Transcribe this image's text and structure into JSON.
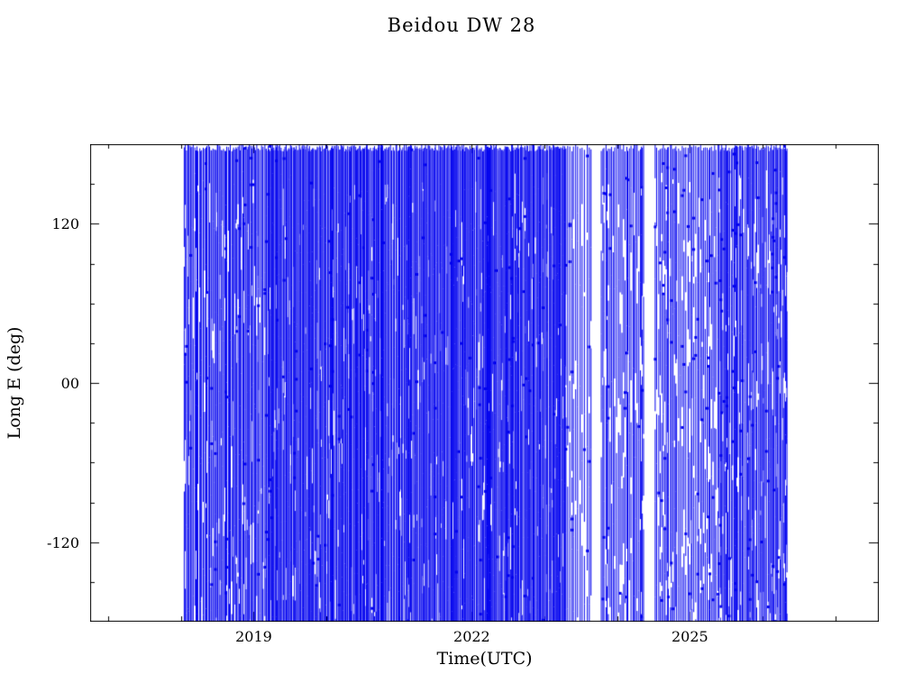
{
  "page": {
    "background": "#ffffff"
  },
  "chart_data": {
    "type": "line",
    "title": "Beidou DW 28",
    "xlabel": "Time(UTC)",
    "ylabel": "Long E (deg)",
    "xlim": [
      2016.75,
      2027.6
    ],
    "ylim": [
      -180,
      180
    ],
    "x_major_ticks": [
      {
        "value": 2019,
        "label": "2019"
      },
      {
        "value": 2022,
        "label": "2022"
      },
      {
        "value": 2025,
        "label": "2025"
      }
    ],
    "x_minor_interval": 1,
    "y_major_ticks": [
      {
        "value": 120,
        "label": "120"
      },
      {
        "value": 0,
        "label": "00"
      },
      {
        "value": -120,
        "label": "-120"
      }
    ],
    "y_minor_interval": 30,
    "line_color": "#0000ee",
    "frame_color": "#000000",
    "grid": false,
    "legend": null,
    "series_description": "Sub-satellite longitude (deg E) of Beidou DW 28 versus time. Rapid longitude drift wraps repeatedly between +180 and -180 deg, producing dense near-vertical blue traces with small square markers. Coverage runs from about 2018.05 to 2026.35: nearly solid blue from 2018.1 to 2023.3, then sparser dashed vertical traces with visible white gaps near 2023.7 and 2024.45, moderately dense again 2024.55 to 2026.35, empty before 2018 and after mid-2026.",
    "data_extent": {
      "start": 2018.05,
      "end": 2026.35
    },
    "render": {
      "seed": 987654,
      "marker_size": 3,
      "regions": [
        {
          "from": 2018.05,
          "to": 2019.2,
          "spacing": 0.016,
          "dash_prob": 0.28,
          "marker_prob": 0.3
        },
        {
          "from": 2019.2,
          "to": 2023.3,
          "spacing": 0.012,
          "dash_prob": 0.2,
          "marker_prob": 0.2
        },
        {
          "from": 2023.3,
          "to": 2023.66,
          "spacing": 0.028,
          "dash_prob": 0.5,
          "marker_prob": 0.5
        },
        {
          "from": 2023.78,
          "to": 2024.38,
          "spacing": 0.02,
          "dash_prob": 0.5,
          "marker_prob": 0.5
        },
        {
          "from": 2024.52,
          "to": 2025.4,
          "spacing": 0.022,
          "dash_prob": 0.55,
          "marker_prob": 0.55
        },
        {
          "from": 2025.4,
          "to": 2026.35,
          "spacing": 0.015,
          "dash_prob": 0.45,
          "marker_prob": 0.5
        }
      ]
    }
  }
}
